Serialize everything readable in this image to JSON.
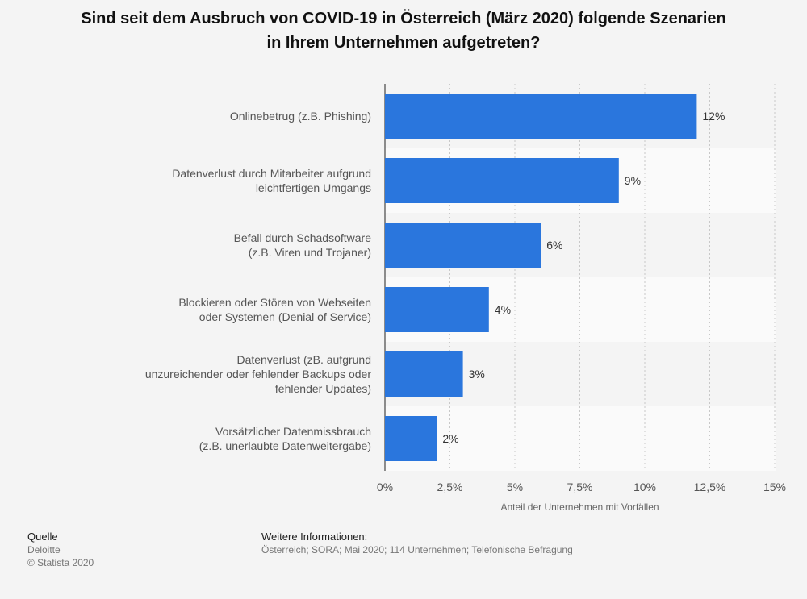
{
  "title_lines": [
    "Sind seit dem Ausbruch von COVID-19 in Österreich (März 2020) folgende Szenarien",
    "in Ihrem Unternehmen aufgetreten?"
  ],
  "chart_data": {
    "type": "bar",
    "orientation": "horizontal",
    "categories": [
      [
        "Onlinebetrug (z.B. Phishing)"
      ],
      [
        "Datenverlust durch Mitarbeiter aufgrund",
        "leichtfertigen Umgangs"
      ],
      [
        "Befall durch Schadsoftware",
        "(z.B. Viren und Trojaner)"
      ],
      [
        "Blockieren oder Stören von Webseiten",
        "oder Systemen (Denial of Service)"
      ],
      [
        "Datenverlust (zB. aufgrund",
        "unzureichender oder fehlender Backups oder",
        "fehlender Updates)"
      ],
      [
        "Vorsätzlicher Datenmissbrauch",
        "(z.B. unerlaubte Datenweitergabe)"
      ]
    ],
    "values": [
      12,
      9,
      6,
      4,
      3,
      2
    ],
    "data_labels": [
      "12%",
      "9%",
      "6%",
      "4%",
      "3%",
      "2%"
    ],
    "xlim": [
      0,
      15
    ],
    "ticks": [
      0,
      2.5,
      5,
      7.5,
      10,
      12.5,
      15
    ],
    "tick_labels": [
      "0%",
      "2,5%",
      "5%",
      "7,5%",
      "10%",
      "12,5%",
      "15%"
    ],
    "xlabel": "Anteil der Unternehmen mit Vorfällen",
    "bar_color": "#2a76dd",
    "grid": true
  },
  "source": {
    "heading": "Quelle",
    "lines": [
      "Deloitte",
      "© Statista 2020"
    ]
  },
  "info": {
    "heading": "Weitere Informationen:",
    "text": "Österreich; SORA; Mai 2020; 114 Unternehmen; Telefonische Befragung"
  }
}
